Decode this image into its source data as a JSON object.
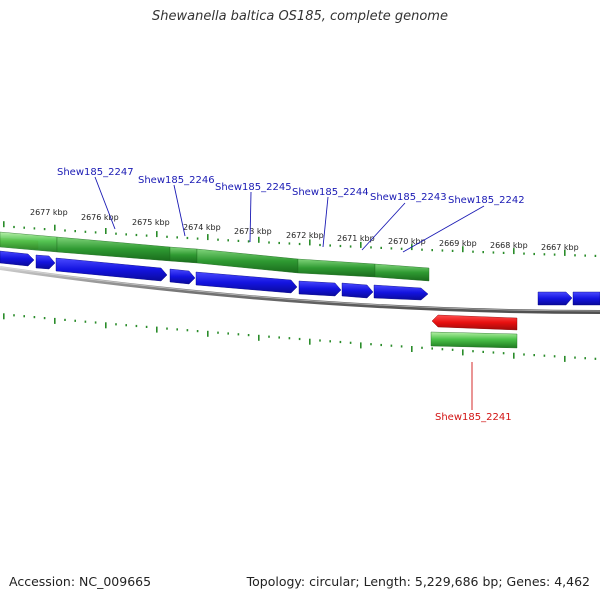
{
  "title": "Shewanella baltica OS185, complete genome",
  "footer": {
    "accession": "Accession: NC_009665",
    "summary": "Topology: circular; Length: 5,229,686 bp; Genes: 4,462"
  },
  "colors": {
    "forward_cds": "#1a1ae6",
    "reverse_cds": "#e61a1a",
    "gene_green": "#3cb43c",
    "gene_orange": "#f08c1e",
    "backbone": "#8c8c8c",
    "tick": "#2a8c2a",
    "label_forward": "#1a1ab4",
    "label_reverse": "#d21414"
  },
  "scale_ticks": [
    "2677 kbp",
    "2676 kbp",
    "2675 kbp",
    "2674 kbp",
    "2673 kbp",
    "2672 kbp",
    "2671 kbp",
    "2670 kbp",
    "2669 kbp",
    "2668 kbp",
    "2667 kbp"
  ],
  "gene_labels": [
    {
      "name": "Shew185_2247",
      "strand": "forward"
    },
    {
      "name": "Shew185_2246",
      "strand": "forward"
    },
    {
      "name": "Shew185_2245",
      "strand": "forward"
    },
    {
      "name": "Shew185_2244",
      "strand": "forward"
    },
    {
      "name": "Shew185_2243",
      "strand": "forward"
    },
    {
      "name": "Shew185_2242",
      "strand": "forward"
    },
    {
      "name": "Shew185_2241",
      "strand": "reverse"
    }
  ]
}
